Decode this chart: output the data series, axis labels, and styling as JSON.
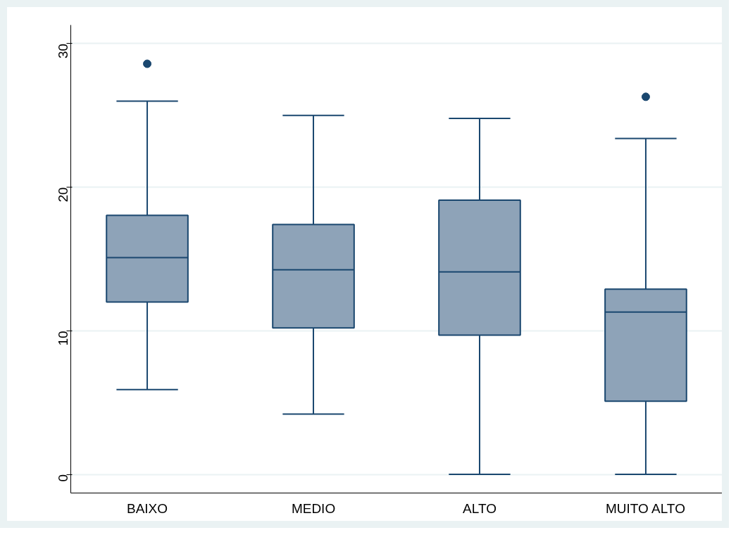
{
  "chart_data": {
    "type": "box",
    "categories": [
      "BAIXO",
      "MEDIO",
      "ALTO",
      "MUITO ALTO"
    ],
    "boxes": [
      {
        "low": 5.9,
        "q1": 12.0,
        "median": 15.1,
        "q3": 18.05,
        "high": 26.0,
        "outliers": [
          28.6
        ]
      },
      {
        "low": 4.2,
        "q1": 10.2,
        "median": 14.25,
        "q3": 17.4,
        "high": 25.0
      },
      {
        "low": 0,
        "q1": 9.7,
        "median": 14.1,
        "q3": 19.1,
        "high": 24.8
      },
      {
        "low": 0,
        "q1": 5.1,
        "median": 11.3,
        "q3": 12.9,
        "high": 23.4,
        "outliers": [
          26.3
        ]
      }
    ],
    "color": "#8ea3b8",
    "ylim": [
      -1.3,
      31.3
    ],
    "yticks": [
      0,
      10,
      20,
      30
    ],
    "grid": "y"
  }
}
